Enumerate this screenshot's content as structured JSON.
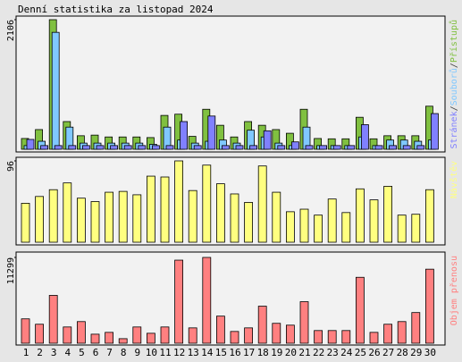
{
  "chart_data": [
    {
      "type": "bar",
      "title": "Denní statistika za listopad 2024",
      "legend_separator": "/",
      "ylim": [
        0,
        2106
      ],
      "yticks": [
        2106
      ],
      "series": [
        {
          "name": "Stránek",
          "color": "#8080ff",
          "values": [
            160,
            60,
            60,
            60,
            60,
            60,
            60,
            60,
            60,
            60,
            60,
            450,
            60,
            540,
            60,
            60,
            60,
            300,
            60,
            120,
            60,
            60,
            60,
            60,
            400,
            60,
            60,
            60,
            60,
            580
          ]
        },
        {
          "name": "Souborů",
          "color": "#80c8ff",
          "values": [
            60,
            130,
            1900,
            360,
            100,
            100,
            100,
            100,
            100,
            80,
            360,
            150,
            100,
            130,
            150,
            100,
            310,
            200,
            100,
            60,
            360,
            60,
            60,
            60,
            200,
            60,
            150,
            150,
            130,
            150
          ]
        },
        {
          "name": "Přístupů",
          "color": "#80c040",
          "values": [
            175,
            320,
            2106,
            450,
            220,
            230,
            200,
            200,
            200,
            190,
            550,
            570,
            210,
            650,
            390,
            200,
            450,
            390,
            320,
            260,
            650,
            175,
            170,
            170,
            520,
            170,
            220,
            220,
            220,
            700
          ]
        }
      ]
    },
    {
      "type": "bar",
      "ylim": [
        0,
        96
      ],
      "yticks": [
        96
      ],
      "series": [
        {
          "name": "Návštěv",
          "color": "#ffff80",
          "values": [
            46,
            54,
            62,
            70,
            52,
            48,
            59,
            60,
            56,
            78,
            77,
            96,
            61,
            91,
            69,
            57,
            47,
            90,
            59,
            36,
            39,
            32,
            51,
            35,
            63,
            50,
            66,
            32,
            33,
            62
          ]
        }
      ]
    },
    {
      "type": "bar",
      "ylim": [
        0,
        11299
      ],
      "yticks": [
        11299
      ],
      "categories": [
        "1",
        "2",
        "3",
        "4",
        "5",
        "6",
        "7",
        "8",
        "9",
        "10",
        "11",
        "12",
        "13",
        "14",
        "15",
        "16",
        "17",
        "18",
        "19",
        "20",
        "21",
        "22",
        "23",
        "24",
        "25",
        "26",
        "27",
        "28",
        "29",
        "30"
      ],
      "category_colors": [
        "#000",
        "#40a000",
        "#40a000",
        "#000",
        "#000",
        "#000",
        "#000",
        "#000",
        "#40a000",
        "#40a000",
        "#000",
        "#000",
        "#000",
        "#000",
        "#000",
        "#40a000",
        "#40a000",
        "#000",
        "#000",
        "#000",
        "#000",
        "#000",
        "#40a000",
        "#40a000",
        "#000",
        "#000",
        "#000",
        "#000",
        "#000",
        "#40a000"
      ],
      "series": [
        {
          "name": "Objem přenosu",
          "color": "#ff8080",
          "values": [
            3210,
            2500,
            6300,
            2140,
            2850,
            1190,
            1430,
            600,
            2140,
            1310,
            2140,
            10940,
            2020,
            11299,
            3570,
            1550,
            2020,
            4880,
            2620,
            2380,
            5470,
            1670,
            1670,
            1670,
            8680,
            1430,
            2500,
            2850,
            4040,
            9750
          ]
        }
      ]
    }
  ]
}
